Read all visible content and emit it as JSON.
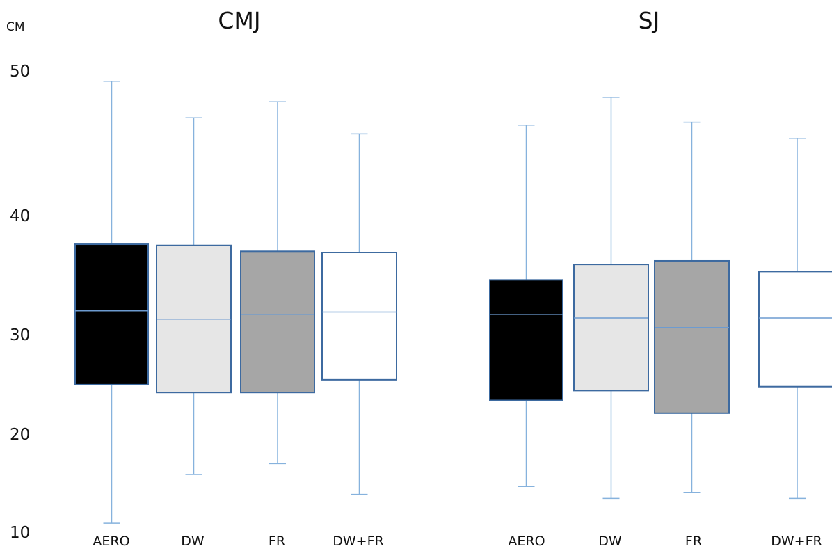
{
  "chart_data": {
    "type": "box",
    "unit_label": "CM",
    "y_ticks": [
      "50",
      "40",
      "30",
      "20",
      "10"
    ],
    "colors": {
      "AERO": "#000000",
      "DW": "#e6e6e6",
      "FR": "#a6a6a6",
      "DW+FR": "#ffffff",
      "box_edge": "#3d6aa0",
      "whisker": "#86b2dd"
    },
    "panels": [
      {
        "title": "CMJ",
        "boxes": [
          {
            "category": "AERO",
            "min": 10.9,
            "q1": 24.9,
            "median": 32.0,
            "q3": 37.6,
            "max": 49.2
          },
          {
            "category": "DW",
            "min": 15.8,
            "q1": 24.1,
            "median": 31.3,
            "q3": 37.5,
            "max": 46.7
          },
          {
            "category": "FR",
            "min": 16.9,
            "q1": 24.1,
            "median": 31.7,
            "q3": 37.0,
            "max": 47.8
          },
          {
            "category": "DW+FR",
            "min": 13.8,
            "q1": 25.4,
            "median": 31.9,
            "q3": 36.9,
            "max": 45.6
          }
        ]
      },
      {
        "title": "SJ",
        "boxes": [
          {
            "category": "AERO",
            "min": 14.6,
            "q1": 23.3,
            "median": 31.7,
            "q3": 34.6,
            "max": 46.2
          },
          {
            "category": "DW",
            "min": 13.4,
            "q1": 24.3,
            "median": 31.4,
            "q3": 35.9,
            "max": 48.1
          },
          {
            "category": "FR",
            "min": 14.0,
            "q1": 22.0,
            "median": 30.6,
            "q3": 36.2,
            "max": 46.4
          },
          {
            "category": "DW+FR",
            "min": 13.4,
            "q1": 24.7,
            "median": 31.4,
            "q3": 35.3,
            "max": 45.3
          }
        ]
      }
    ]
  }
}
